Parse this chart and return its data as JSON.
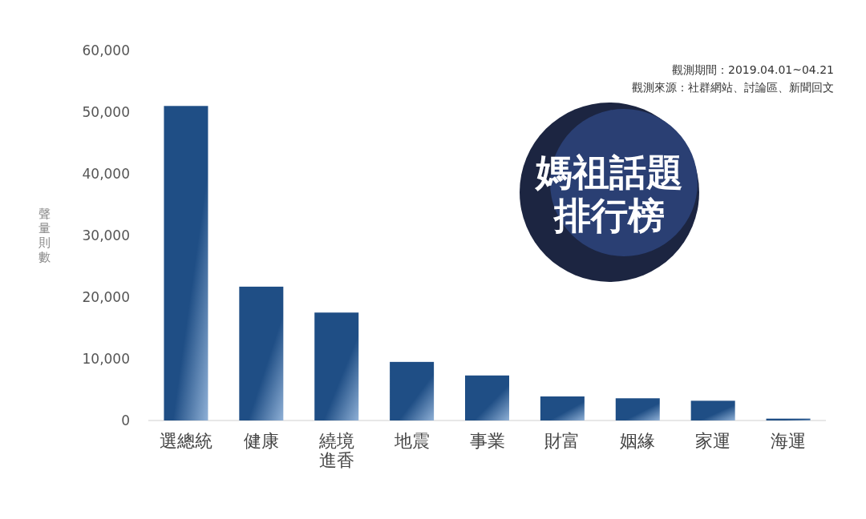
{
  "chart_data": {
    "type": "bar",
    "title": "媽祖話題排行榜",
    "ylabel": "聲量則數",
    "categories": [
      "選總統",
      "健康",
      "繞境進香",
      "地震",
      "事業",
      "財富",
      "姻緣",
      "家運",
      "海運"
    ],
    "values": [
      51000,
      21700,
      17500,
      9500,
      7300,
      3900,
      3600,
      3200,
      300
    ],
    "color": "#1f4e85",
    "ylim": [
      0,
      60000
    ],
    "yticks": [
      {
        "value": 0,
        "label": "0"
      },
      {
        "value": 10000,
        "label": "10,000"
      },
      {
        "value": 20000,
        "label": "20,000"
      },
      {
        "value": 30000,
        "label": "30,000"
      },
      {
        "value": 40000,
        "label": "40,000"
      },
      {
        "value": 50000,
        "label": "50,000"
      },
      {
        "value": 60000,
        "label": "60,000"
      }
    ],
    "annotations": [
      "觀測期間：2019.04.01~04.21",
      "觀測來源：社群網站、討論區、新聞回文"
    ]
  }
}
